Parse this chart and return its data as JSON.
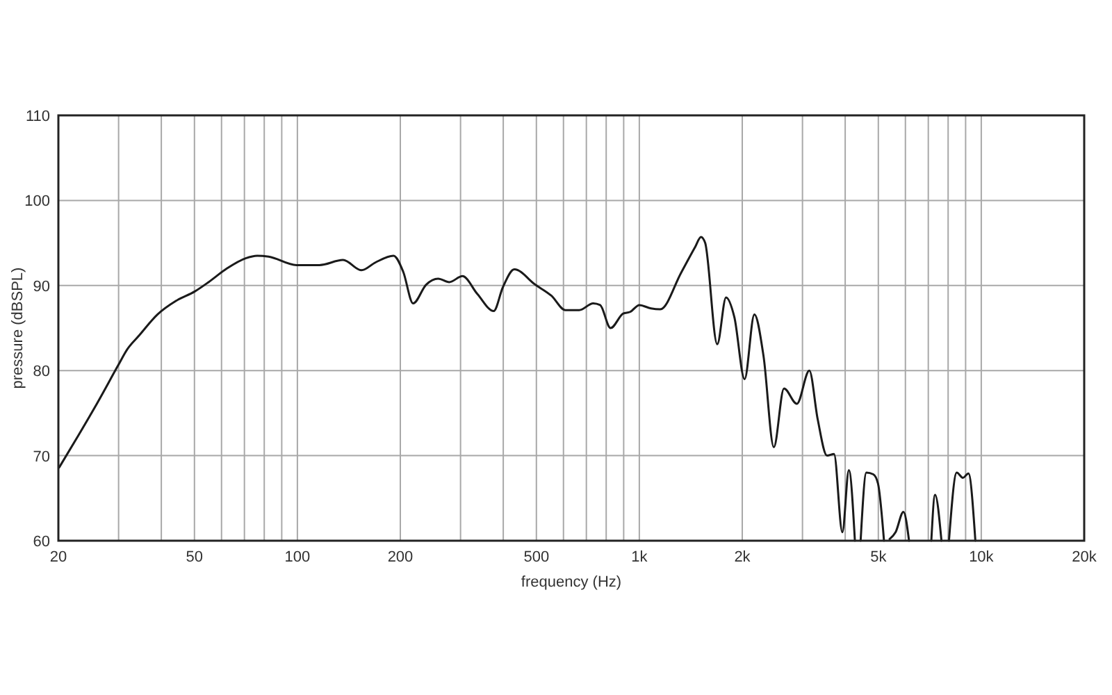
{
  "chart_data": {
    "type": "line",
    "xlabel": "frequency (Hz)",
    "ylabel": "pressure (dBSPL)",
    "log": "x",
    "grid": true,
    "color": "#1a1a1a",
    "xlim": [
      20,
      20000
    ],
    "ylim": [
      60,
      110
    ],
    "xticks": [
      20,
      {
        "value": 30,
        "label": null
      },
      {
        "value": 40,
        "label": null
      },
      50,
      {
        "value": 60,
        "label": null
      },
      {
        "value": 70,
        "label": null
      },
      {
        "value": 80,
        "label": null
      },
      {
        "value": 90,
        "label": null
      },
      100,
      200,
      {
        "value": 300,
        "label": null
      },
      {
        "value": 400,
        "label": null
      },
      500,
      {
        "value": 600,
        "label": null
      },
      {
        "value": 700,
        "label": null
      },
      {
        "value": 800,
        "label": null
      },
      {
        "value": 900,
        "label": null
      },
      {
        "value": 1000,
        "label": "1k"
      },
      {
        "value": 2000,
        "label": "2k"
      },
      {
        "value": 3000,
        "label": null
      },
      {
        "value": 4000,
        "label": null
      },
      {
        "value": 5000,
        "label": "5k"
      },
      {
        "value": 6000,
        "label": null
      },
      {
        "value": 7000,
        "label": null
      },
      {
        "value": 8000,
        "label": null
      },
      {
        "value": 9000,
        "label": null
      },
      {
        "value": 10000,
        "label": "10k"
      },
      {
        "value": 20000,
        "label": "20k"
      }
    ],
    "yticks": [
      60,
      70,
      80,
      90,
      100,
      110
    ],
    "x": [
      20.1,
      22.9,
      26,
      29.9,
      31.8,
      34.4,
      39,
      44.2,
      50.1,
      55,
      62.2,
      70.6,
      76.3,
      82.4,
      99.4,
      116,
      136,
      154,
      169,
      191,
      204,
      218,
      238,
      258,
      278,
      304,
      336,
      375,
      399,
      431,
      496,
      553,
      608,
      667,
      733,
      768,
      824,
      897,
      940,
      1000,
      1082,
      1151,
      1325,
      1455,
      1515,
      1558,
      1690,
      1793,
      1896,
      2032,
      2170,
      2308,
      2474,
      2649,
      2889,
      3142,
      3323,
      3540,
      3710,
      3924,
      4100,
      4270,
      4350,
      4438,
      4614,
      4834,
      4990,
      5194,
      5290,
      5394,
      5616,
      5922,
      6148,
      6600,
      7144,
      7326,
      7648,
      7850,
      8046,
      8478,
      8836,
      9172,
      9610
    ],
    "values": [
      68.6,
      72.4,
      76.2,
      80.6,
      82.5,
      84.1,
      86.6,
      88.2,
      89.3,
      90.4,
      92,
      93.2,
      93.5,
      93.4,
      92.4,
      92.4,
      93,
      91.8,
      92.7,
      93.5,
      91.6,
      87.9,
      90.1,
      90.8,
      90.4,
      91.1,
      89,
      87,
      89.8,
      91.9,
      90.1,
      88.8,
      87.1,
      87.1,
      87.9,
      87.7,
      85,
      86.7,
      86.9,
      87.7,
      87.3,
      87.2,
      91.5,
      94.5,
      95.7,
      95,
      83.1,
      88.6,
      86.3,
      79,
      86.6,
      81.7,
      71,
      77.9,
      76.1,
      80,
      74.3,
      70,
      70.2,
      61,
      68.3,
      60,
      null,
      60,
      68,
      67.8,
      66.7,
      60,
      null,
      60.2,
      61,
      63.4,
      60,
      null,
      60,
      65.4,
      60,
      null,
      60,
      68,
      67.4,
      67.9,
      60
    ]
  }
}
